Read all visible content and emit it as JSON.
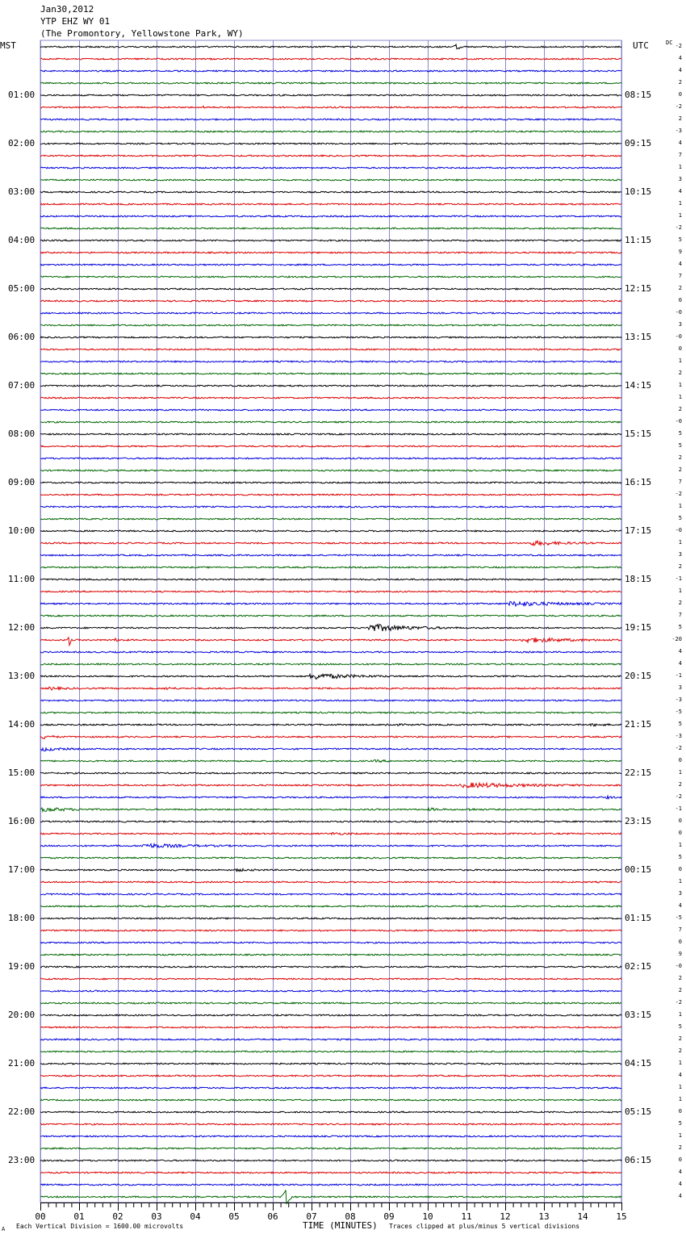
{
  "header": {
    "date": "Jan30,2012",
    "station": "YTP EHZ WY 01",
    "location": "(The Promontory, Yellowstone Park, WY)"
  },
  "left_axis_label": "MST",
  "right_axis_label": "UTC",
  "dc_label": "DC",
  "footer": {
    "scale_note": "Each Vertical Division = 1600.00 microvolts",
    "xlabel": "TIME (MINUTES)",
    "clip_note": "Traces clipped at plus/minus 5 vertical divisions",
    "corner_mark": "A"
  },
  "chart_data": {
    "type": "line",
    "title": "",
    "xlabel": "TIME (MINUTES)",
    "xlim": [
      0,
      15
    ],
    "x_ticks": [
      "00",
      "01",
      "02",
      "03",
      "04",
      "05",
      "06",
      "07",
      "08",
      "09",
      "10",
      "11",
      "12",
      "13",
      "14",
      "15"
    ],
    "minor_ticks_per_minute": 5,
    "grid": true,
    "trace_count": 96,
    "traces_per_hour": 4,
    "minutes_per_trace": 15,
    "trace_colors": [
      "#000000",
      "#dd0000",
      "#0000dd",
      "#006600"
    ],
    "grid_color": "#8888cc",
    "left_labels": [
      "01:00",
      "02:00",
      "03:00",
      "04:00",
      "05:00",
      "06:00",
      "07:00",
      "08:00",
      "09:00",
      "10:00",
      "11:00",
      "12:00",
      "13:00",
      "14:00",
      "15:00",
      "16:00",
      "17:00",
      "18:00",
      "19:00",
      "20:00",
      "21:00",
      "22:00",
      "23:00"
    ],
    "right_labels": [
      "08:15",
      "09:15",
      "10:15",
      "11:15",
      "12:15",
      "13:15",
      "14:15",
      "15:15",
      "16:15",
      "17:15",
      "18:15",
      "19:15",
      "20:15",
      "21:15",
      "22:15",
      "23:15",
      "00:15",
      "01:15",
      "02:15",
      "03:15",
      "04:15",
      "05:15",
      "06:15"
    ],
    "dc_offsets": [
      "-2",
      "4",
      "4",
      "2",
      "0",
      "-2",
      "2",
      "-3",
      "4",
      "7",
      "1",
      "3",
      "4",
      "1",
      "1",
      "-2",
      "5",
      "9",
      "4",
      "7",
      "2",
      "0",
      "-0",
      "3",
      "-0",
      "0",
      "1",
      "2",
      "1",
      "1",
      "2",
      "-0",
      "5",
      "5",
      "2",
      "2",
      "7",
      "-2",
      "1",
      "5",
      "-0",
      "1",
      "3",
      "2",
      "-1",
      "1",
      "2",
      "7",
      "5",
      "-20",
      "4",
      "4",
      "-1",
      "3",
      "-3",
      "-5",
      "5",
      "-3",
      "-2",
      "0",
      "1",
      "2",
      "-2",
      "-1",
      "0",
      "0",
      "1",
      "5",
      "0",
      "1",
      "3",
      "4",
      "-5",
      "7",
      "0",
      "9",
      "-0",
      "2",
      "2",
      "-2",
      "1",
      "5",
      "2",
      "2",
      "1",
      "4",
      "1",
      "1",
      "0",
      "5",
      "1",
      "2",
      "0",
      "4",
      "4",
      "4"
    ],
    "events": [
      {
        "trace": 0,
        "start_min": 10.6,
        "end_min": 10.9,
        "amp": 2.6,
        "spike": true
      },
      {
        "trace": 5,
        "start_min": 4.2,
        "end_min": 4.4,
        "amp": 1.3
      },
      {
        "trace": 41,
        "start_min": 12.6,
        "end_min": 14.4,
        "amp": 3.2
      },
      {
        "trace": 46,
        "start_min": 12.0,
        "end_min": 15.0,
        "amp": 3.5
      },
      {
        "trace": 48,
        "start_min": 8.4,
        "end_min": 10.8,
        "amp": 5.5
      },
      {
        "trace": 49,
        "start_min": 12.4,
        "end_min": 15.0,
        "amp": 3.5
      },
      {
        "trace": 49,
        "start_min": 0.7,
        "end_min": 0.8,
        "amp": 6.0,
        "spike": true
      },
      {
        "trace": 49,
        "start_min": 1.9,
        "end_min": 2.3,
        "amp": 1.8
      },
      {
        "trace": 52,
        "start_min": 6.9,
        "end_min": 9.2,
        "amp": 4.6
      },
      {
        "trace": 53,
        "start_min": 0.2,
        "end_min": 1.0,
        "amp": 2.0
      },
      {
        "trace": 53,
        "start_min": 3.2,
        "end_min": 3.7,
        "amp": 1.8
      },
      {
        "trace": 56,
        "start_min": 8.9,
        "end_min": 9.6,
        "amp": 1.6
      },
      {
        "trace": 56,
        "start_min": 14.2,
        "end_min": 15.0,
        "amp": 1.5
      },
      {
        "trace": 57,
        "start_min": 0.0,
        "end_min": 0.6,
        "amp": 2.8
      },
      {
        "trace": 58,
        "start_min": 0.0,
        "end_min": 1.0,
        "amp": 2.8
      },
      {
        "trace": 59,
        "start_min": 8.6,
        "end_min": 9.4,
        "amp": 1.2
      },
      {
        "trace": 61,
        "start_min": 10.8,
        "end_min": 14.4,
        "amp": 3.6
      },
      {
        "trace": 62,
        "start_min": 14.6,
        "end_min": 15.0,
        "amp": 1.5
      },
      {
        "trace": 63,
        "start_min": 0.0,
        "end_min": 1.6,
        "amp": 2.8
      },
      {
        "trace": 63,
        "start_min": 10.0,
        "end_min": 10.6,
        "amp": 1.8
      },
      {
        "trace": 63,
        "start_min": 11.0,
        "end_min": 11.5,
        "amp": 1.6
      },
      {
        "trace": 65,
        "start_min": 7.5,
        "end_min": 8.2,
        "amp": 1.6
      },
      {
        "trace": 66,
        "start_min": 2.6,
        "end_min": 5.0,
        "amp": 3.0
      },
      {
        "trace": 68,
        "start_min": 5.0,
        "end_min": 5.8,
        "amp": 1.6
      },
      {
        "trace": 95,
        "start_min": 6.2,
        "end_min": 6.5,
        "amp": 9.0,
        "spike": true
      }
    ]
  }
}
